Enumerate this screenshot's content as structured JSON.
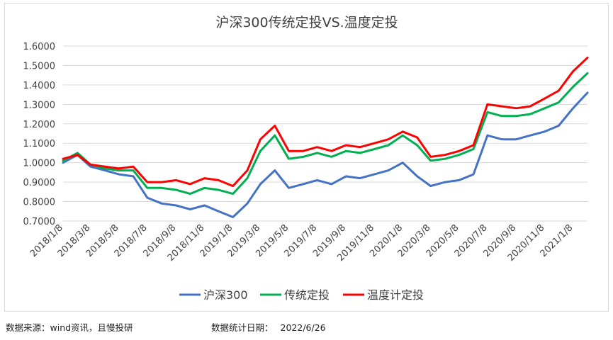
{
  "footer": {
    "source": "数据来源：wind资讯，且慢投研",
    "stat_label": "数据统计日期：",
    "stat_date": "2022/6/26"
  },
  "chart_data": {
    "type": "line",
    "title": "沪深300传统定投VS.温度定投",
    "xlabel": "",
    "ylabel": "",
    "ylim": [
      0.7,
      1.6
    ],
    "y_ticks": [
      "0.7000",
      "0.8000",
      "0.9000",
      "1.0000",
      "1.1000",
      "1.2000",
      "1.3000",
      "1.4000",
      "1.5000",
      "1.6000"
    ],
    "x_ticks": [
      "2018/1/8",
      "2018/3/8",
      "2018/5/8",
      "2018/7/8",
      "2018/9/8",
      "2018/11/8",
      "2019/1/8",
      "2019/3/8",
      "2019/5/8",
      "2019/7/8",
      "2019/9/8",
      "2019/11/8",
      "2020/1/8",
      "2020/3/8",
      "2020/5/8",
      "2020/7/8",
      "2020/9/8",
      "2020/11/8",
      "2021/1/8"
    ],
    "x": [
      "2018/1/8",
      "2018/2/8",
      "2018/3/8",
      "2018/4/8",
      "2018/5/8",
      "2018/6/8",
      "2018/7/8",
      "2018/8/8",
      "2018/9/8",
      "2018/10/8",
      "2018/11/8",
      "2018/12/8",
      "2019/1/8",
      "2019/2/8",
      "2019/3/8",
      "2019/4/8",
      "2019/5/8",
      "2019/6/8",
      "2019/7/8",
      "2019/8/8",
      "2019/9/8",
      "2019/10/8",
      "2019/11/8",
      "2019/12/8",
      "2020/1/8",
      "2020/2/8",
      "2020/3/8",
      "2020/4/8",
      "2020/5/8",
      "2020/6/8",
      "2020/7/8",
      "2020/8/8",
      "2020/9/8",
      "2020/10/8",
      "2020/11/8",
      "2020/12/8",
      "2021/1/8",
      "2021/2/8"
    ],
    "series": [
      {
        "name": "沪深300",
        "color": "#4472c4",
        "values": [
          1.0,
          1.04,
          0.98,
          0.96,
          0.94,
          0.93,
          0.82,
          0.79,
          0.78,
          0.76,
          0.78,
          0.75,
          0.72,
          0.79,
          0.89,
          0.96,
          0.87,
          0.89,
          0.91,
          0.89,
          0.93,
          0.92,
          0.94,
          0.96,
          1.0,
          0.93,
          0.88,
          0.9,
          0.91,
          0.94,
          1.14,
          1.12,
          1.12,
          1.14,
          1.16,
          1.19,
          1.28,
          1.36
        ]
      },
      {
        "name": "传统定投",
        "color": "#00b050",
        "values": [
          1.01,
          1.05,
          0.99,
          0.97,
          0.96,
          0.96,
          0.87,
          0.87,
          0.86,
          0.84,
          0.87,
          0.86,
          0.84,
          0.92,
          1.06,
          1.14,
          1.02,
          1.03,
          1.05,
          1.03,
          1.06,
          1.05,
          1.07,
          1.09,
          1.14,
          1.09,
          1.01,
          1.02,
          1.04,
          1.07,
          1.26,
          1.24,
          1.24,
          1.25,
          1.28,
          1.31,
          1.39,
          1.46
        ]
      },
      {
        "name": "温度计定投",
        "color": "#ff0000",
        "values": [
          1.02,
          1.04,
          0.99,
          0.98,
          0.97,
          0.98,
          0.9,
          0.9,
          0.91,
          0.89,
          0.92,
          0.91,
          0.88,
          0.96,
          1.12,
          1.19,
          1.06,
          1.06,
          1.08,
          1.06,
          1.09,
          1.08,
          1.1,
          1.12,
          1.16,
          1.13,
          1.03,
          1.04,
          1.06,
          1.09,
          1.3,
          1.29,
          1.28,
          1.29,
          1.33,
          1.37,
          1.47,
          1.54
        ]
      }
    ],
    "grid": true,
    "legend": "bottom"
  }
}
